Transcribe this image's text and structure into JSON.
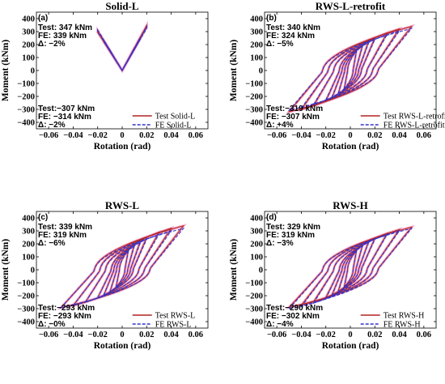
{
  "chart_data": [
    {
      "type": "line",
      "title": "Solid-L",
      "label": "(a)",
      "xlabel": "Rotation (rad)",
      "ylabel": "Moment (kNm)",
      "xlim": [
        -0.07,
        0.07
      ],
      "ylim": [
        -450,
        450
      ],
      "xticks": [
        "−0.06",
        "−0.04",
        "−0.02",
        "0",
        "0.02",
        "0.04",
        "0.06"
      ],
      "xtick_values": [
        -0.06,
        -0.04,
        -0.02,
        0,
        0.02,
        0.04,
        0.06
      ],
      "yticks": [
        "−400",
        "−300",
        "−200",
        "−100",
        "0",
        "100",
        "200",
        "300",
        "400"
      ],
      "ytick_values": [
        -400,
        -300,
        -200,
        -100,
        0,
        100,
        200,
        300,
        400
      ],
      "annotations_top": [
        "Test: 347 kNm",
        "FE:   339 kNm",
        "Δ:    −2%"
      ],
      "annotations_bottom": [
        "Test:−307 kNm",
        "FE:   −314 kNm",
        "Δ:    −2%"
      ],
      "series": [
        {
          "name": "Test Solid-L",
          "color": "#b22222",
          "style": "solid"
        },
        {
          "name": "FE Solid-L",
          "color": "#3333cc",
          "style": "dashed"
        }
      ],
      "hysteresis": {
        "max_rotation": 0.02,
        "peak_positive": 347,
        "peak_negative": -307,
        "fe_peak_positive": 339,
        "fe_peak_negative": -314,
        "pinch": 0.02,
        "shape": "elastic"
      }
    },
    {
      "type": "line",
      "title": "RWS-L-retrofit",
      "label": "(b)",
      "xlabel": "Rotation (rad)",
      "ylabel": "Moment (kNm)",
      "xlim": [
        -0.07,
        0.07
      ],
      "ylim": [
        -450,
        450
      ],
      "xticks": [
        "−0.06",
        "−0.04",
        "−0.02",
        "0",
        "0.02",
        "0.04",
        "0.06"
      ],
      "xtick_values": [
        -0.06,
        -0.04,
        -0.02,
        0,
        0.02,
        0.04,
        0.06
      ],
      "yticks": [
        "−400",
        "−300",
        "−200",
        "−100",
        "0",
        "100",
        "200",
        "300",
        "400"
      ],
      "ytick_values": [
        -400,
        -300,
        -200,
        -100,
        0,
        100,
        200,
        300,
        400
      ],
      "annotations_top": [
        "Test: 340 kNm",
        "FE:   324 kNm",
        "Δ:    −5%"
      ],
      "annotations_bottom": [
        "Test:−319 kNm",
        "FE:   −307 kNm",
        "Δ:    +4%"
      ],
      "series": [
        {
          "name": "Test RWS-L-retrofit",
          "color": "#b22222",
          "style": "solid"
        },
        {
          "name": "FE RWS-L-retrofit",
          "color": "#3333cc",
          "style": "dashed"
        }
      ],
      "hysteresis": {
        "max_rotation": 0.05,
        "peak_positive": 340,
        "peak_negative": -319,
        "fe_peak_positive": 324,
        "fe_peak_negative": -307,
        "pinch": 0.45,
        "shape": "hysteretic"
      }
    },
    {
      "type": "line",
      "title": "RWS-L",
      "label": "(c)",
      "xlabel": "Rotation (rad)",
      "ylabel": "Moment (kNm)",
      "xlim": [
        -0.07,
        0.07
      ],
      "ylim": [
        -450,
        450
      ],
      "xticks": [
        "−0.06",
        "−0.04",
        "−0.02",
        "0",
        "0.02",
        "0.04",
        "0.06"
      ],
      "xtick_values": [
        -0.06,
        -0.04,
        -0.02,
        0,
        0.02,
        0.04,
        0.06
      ],
      "yticks": [
        "−400",
        "−300",
        "−200",
        "−100",
        "0",
        "100",
        "200",
        "300",
        "400"
      ],
      "ytick_values": [
        -400,
        -300,
        -200,
        -100,
        0,
        100,
        200,
        300,
        400
      ],
      "annotations_top": [
        "Test: 339 kNm",
        "FE:   319 kNm",
        "Δ:    −6%"
      ],
      "annotations_bottom": [
        "Test:−293 kNm",
        "FE:   −293 kNm",
        "Δ:    −0%"
      ],
      "series": [
        {
          "name": "Test RWS-L",
          "color": "#b22222",
          "style": "solid"
        },
        {
          "name": "FE RWS-L",
          "color": "#3333cc",
          "style": "dashed"
        }
      ],
      "hysteresis": {
        "max_rotation": 0.05,
        "peak_positive": 339,
        "peak_negative": -293,
        "fe_peak_positive": 319,
        "fe_peak_negative": -293,
        "pinch": 0.45,
        "shape": "hysteretic"
      }
    },
    {
      "type": "line",
      "title": "RWS-H",
      "label": "(d)",
      "xlabel": "Rotation (rad)",
      "ylabel": "Moment (kNm)",
      "xlim": [
        -0.07,
        0.07
      ],
      "ylim": [
        -450,
        450
      ],
      "xticks": [
        "−0.06",
        "−0.04",
        "−0.02",
        "0",
        "0.02",
        "0.04",
        "0.06"
      ],
      "xtick_values": [
        -0.06,
        -0.04,
        -0.02,
        0,
        0.02,
        0.04,
        0.06
      ],
      "yticks": [
        "−400",
        "−300",
        "−200",
        "−100",
        "0",
        "100",
        "200",
        "300",
        "400"
      ],
      "ytick_values": [
        -400,
        -300,
        -200,
        -100,
        0,
        100,
        200,
        300,
        400
      ],
      "annotations_top": [
        "Test: 329 kNm",
        "FE:   319 kNm",
        "Δ:    −3%"
      ],
      "annotations_bottom": [
        "Test:−290 kNm",
        "FE:   −302 kNm",
        "Δ:    −4%"
      ],
      "series": [
        {
          "name": "Test RWS-H",
          "color": "#b22222",
          "style": "solid"
        },
        {
          "name": "FE RWS-H",
          "color": "#3333cc",
          "style": "dashed"
        }
      ],
      "hysteresis": {
        "max_rotation": 0.05,
        "peak_positive": 329,
        "peak_negative": -290,
        "fe_peak_positive": 319,
        "fe_peak_negative": -302,
        "pinch": 0.45,
        "shape": "hysteretic"
      }
    }
  ]
}
